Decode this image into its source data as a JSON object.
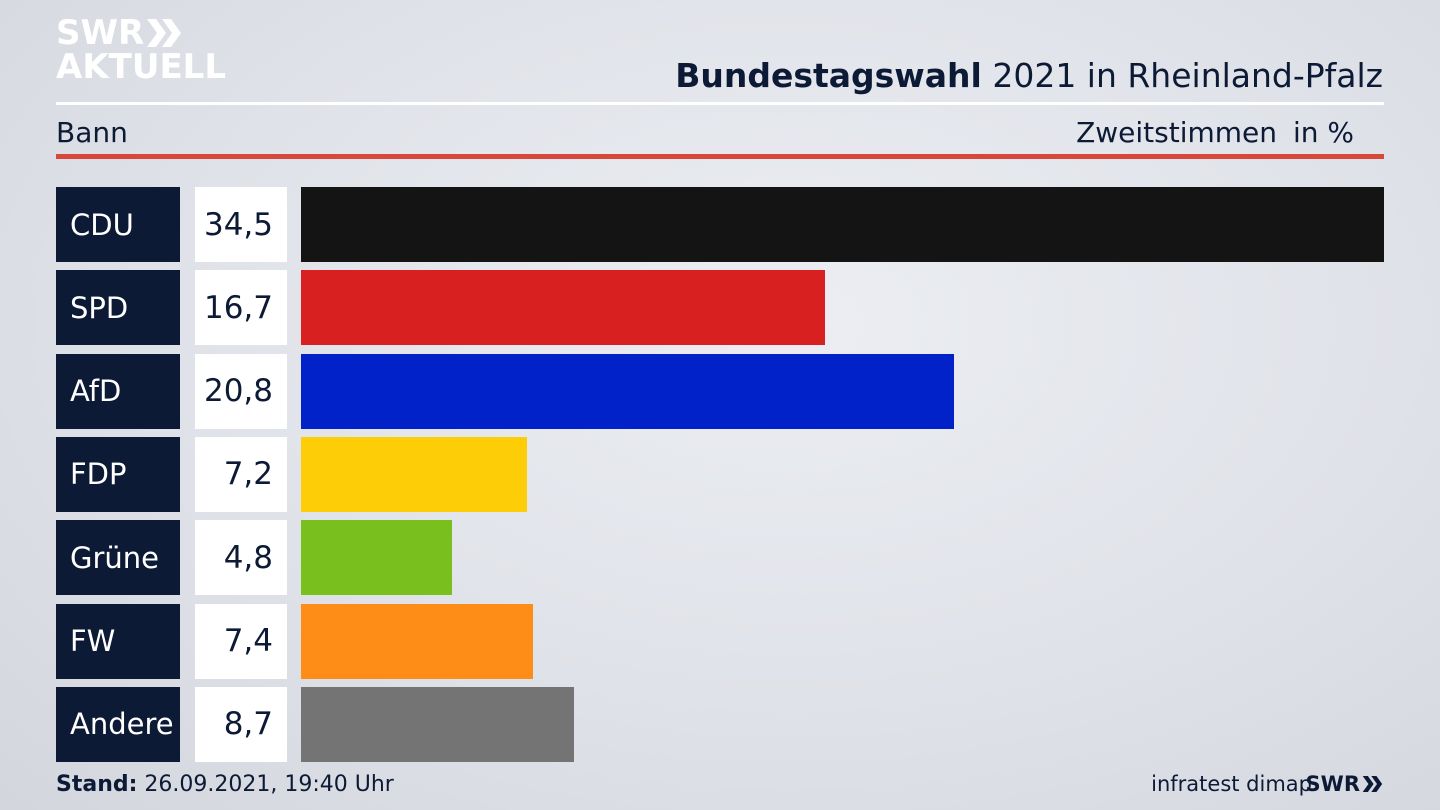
{
  "logo": {
    "line1": "SWR",
    "line2": "AKTUELL"
  },
  "header": {
    "title_bold": "Bundestagswahl",
    "title_rest": " 2021 in Rheinland-Pfalz"
  },
  "subheader": {
    "region": "Bann",
    "vote_type": "Zweitstimmen",
    "unit": "in %"
  },
  "colors": {
    "navy": "#0c1a35",
    "accent_red": "#d9473c"
  },
  "chart_data": {
    "type": "bar",
    "orientation": "horizontal",
    "categories": [
      "CDU",
      "SPD",
      "AfD",
      "FDP",
      "Grüne",
      "FW",
      "Andere"
    ],
    "values": [
      34.5,
      16.7,
      20.8,
      7.2,
      4.8,
      7.4,
      8.7
    ],
    "value_labels": [
      "34,5",
      "16,7",
      "20,8",
      "7,2",
      "4,8",
      "7,4",
      "8,7"
    ],
    "colors": [
      "#141414",
      "#d82020",
      "#0121c9",
      "#fdcd07",
      "#79bf1e",
      "#fd8d17",
      "#747474"
    ],
    "xlim": [
      0,
      34.5
    ],
    "title": "Bundestagswahl 2021 in Rheinland-Pfalz",
    "xlabel": "in %",
    "ylabel": ""
  },
  "footer": {
    "stand_label": "Stand:",
    "stand_value": " 26.09.2021, 19:40 Uhr",
    "source": "infratest dimap",
    "brand": "SWR"
  }
}
